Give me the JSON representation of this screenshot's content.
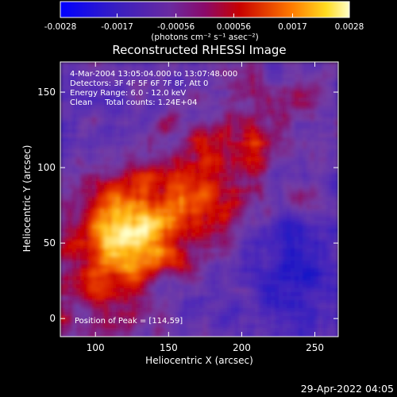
{
  "chart_data": {
    "type": "heatmap",
    "title": "Reconstructed RHESSI Image",
    "xlabel": "Heliocentric X (arcsec)",
    "ylabel": "Heliocentric Y (arcsec)",
    "xlim": [
      76,
      266
    ],
    "ylim": [
      -12,
      170
    ],
    "xticks": [
      100,
      150,
      200,
      250
    ],
    "yticks": [
      0,
      50,
      100,
      150
    ],
    "grid": false,
    "colorbar": {
      "ticks": [
        "-0.0028",
        "-0.0017",
        "-0.00056",
        "0.00056",
        "0.0017",
        "0.0028"
      ],
      "tick_values": [
        -0.0028,
        -0.0017,
        -0.00056,
        0.00056,
        0.0017,
        0.0028
      ],
      "label": "(photons cm⁻² s⁻¹ asec⁻²)",
      "range": [
        -0.0028,
        0.0028
      ]
    },
    "annotations": [
      "4-Mar-2004 13:05:04.000 to 13:07:48.000",
      "Detectors: 3F 4F 5F 6F 7F 8F, Att 0",
      "Energy Range: 6.0 - 12.0 keV",
      "Clean     Total counts: 1.24E+04"
    ],
    "peak_label": "Position of Peak = [114,59]",
    "peak": [
      114,
      59
    ]
  },
  "footer": {
    "date": "29-Apr-2022 04:05"
  }
}
